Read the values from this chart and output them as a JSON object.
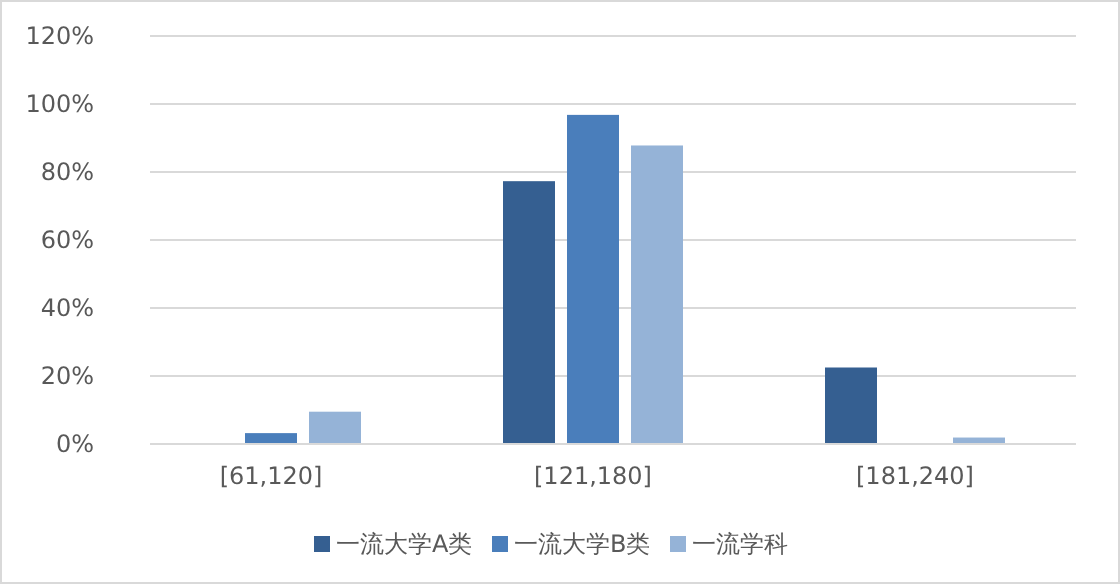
{
  "chart_data": {
    "type": "bar",
    "categories": [
      "[61,120]",
      "[121,180]",
      "[181,240]"
    ],
    "series": [
      {
        "name": "一流大学A类",
        "color": "#355f91",
        "values": [
          0,
          77.3,
          22.5
        ]
      },
      {
        "name": "一流大学B类",
        "color": "#4a7ebb",
        "values": [
          3.2,
          96.8,
          0
        ]
      },
      {
        "name": "一流学科",
        "color": "#95b3d7",
        "values": [
          9.5,
          87.8,
          1.9
        ]
      }
    ],
    "ylim": [
      0,
      120
    ],
    "yticks": [
      {
        "value": 0,
        "label": "0%"
      },
      {
        "value": 20,
        "label": "20%"
      },
      {
        "value": 40,
        "label": "40%"
      },
      {
        "value": 60,
        "label": "60%"
      },
      {
        "value": 80,
        "label": "80%"
      },
      {
        "value": 100,
        "label": "100%"
      },
      {
        "value": 120,
        "label": "120%"
      }
    ],
    "grid": "y",
    "legend": "bottom"
  }
}
